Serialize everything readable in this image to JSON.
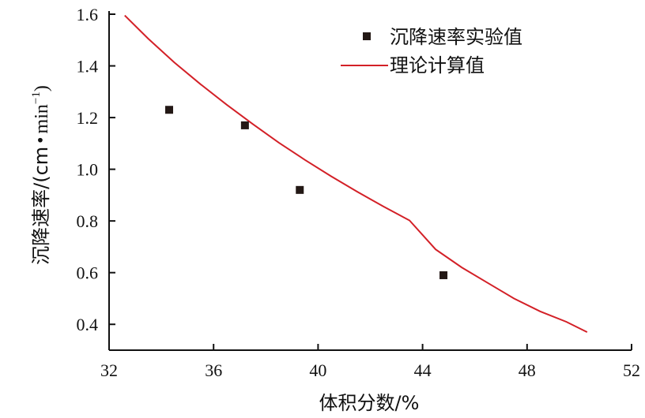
{
  "chart_data": {
    "type": "scatter",
    "title": "",
    "xlabel": "体积分数/%",
    "ylabel_main": "沉降速率/(cm",
    "ylabel_dot": "•",
    "ylabel_unit": "min",
    "ylabel_sup": "−1",
    "ylabel_close": ")",
    "xlim": [
      32,
      52
    ],
    "ylim": [
      0.3,
      1.6
    ],
    "x_ticks": [
      32,
      36,
      40,
      44,
      48,
      52
    ],
    "y_ticks": [
      0.4,
      0.6,
      0.8,
      1.0,
      1.2,
      1.4,
      1.6
    ],
    "x_tick_labels": [
      "32",
      "36",
      "40",
      "44",
      "48",
      "52"
    ],
    "y_tick_labels": [
      "0.4",
      "0.6",
      "0.8",
      "1.0",
      "1.2",
      "1.4",
      "1.6"
    ],
    "grid": false,
    "legend_position": "top-right",
    "series": [
      {
        "name": "沉降速率实验值",
        "kind": "scatter",
        "marker": "square",
        "color": "#231815",
        "x": [
          34.3,
          37.2,
          39.3,
          44.8
        ],
        "y": [
          1.23,
          1.17,
          0.92,
          0.59
        ]
      },
      {
        "name": "理论计算值",
        "kind": "line",
        "color": "#d32027",
        "x": [
          32.6,
          33.5,
          34.5,
          35.5,
          36.5,
          37.5,
          38.5,
          39.5,
          40.5,
          41.5,
          42.5,
          43.5,
          44.5,
          45.5,
          46.5,
          47.5,
          48.5,
          49.5,
          50.3
        ],
        "y": [
          1.595,
          1.505,
          1.413,
          1.329,
          1.25,
          1.175,
          1.103,
          1.036,
          0.973,
          0.913,
          0.856,
          0.802,
          0.69,
          0.62,
          0.56,
          0.5,
          0.45,
          0.41,
          0.37
        ]
      }
    ]
  }
}
